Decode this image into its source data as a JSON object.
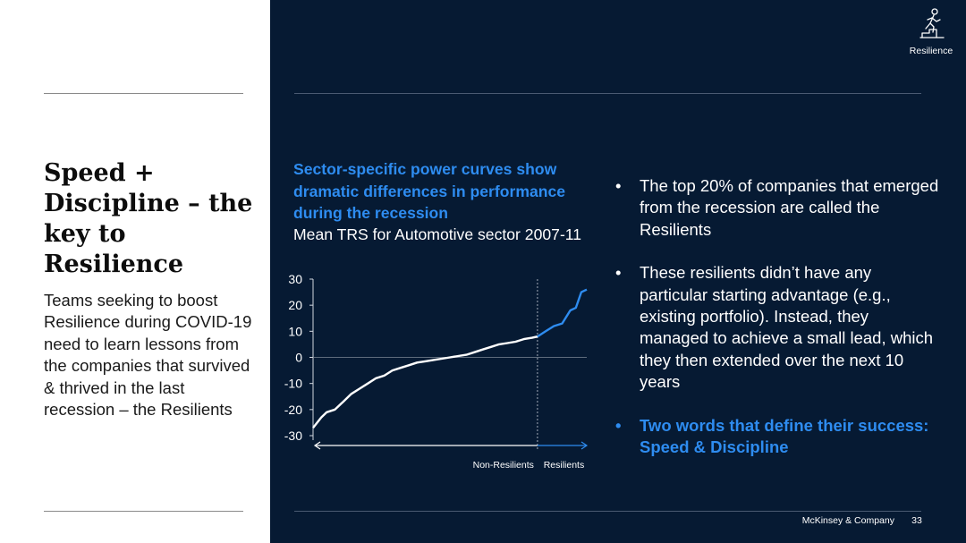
{
  "slide": {
    "title": "Speed + Discipline – the key to Resilience",
    "body": "Teams seeking to boost Resilience during COVID-19 need to learn lessons from the companies that survived & thrived in the last recession – the Resilients"
  },
  "header": {
    "tag_label": "Resilience",
    "tag_icon": "stair-climber-icon"
  },
  "chart": {
    "heading": "Sector-specific power curves show dramatic differences in performance during the recession",
    "subtitle": "Mean TRS for Automotive sector 2007-11"
  },
  "chart_data": {
    "type": "line",
    "title": "Mean TRS for Automotive sector 2007-11",
    "ylim": [
      -30,
      30
    ],
    "yticks": [
      "30",
      "20",
      "10",
      "0",
      "-10",
      "-20",
      "-30"
    ],
    "grid": false,
    "divider_rank": 82,
    "x": [
      0,
      3,
      5,
      8,
      11,
      14,
      17,
      20,
      23,
      26,
      29,
      32,
      35,
      38,
      41,
      44,
      47,
      50,
      53,
      56,
      59,
      62,
      65,
      68,
      71,
      74,
      77,
      80,
      82,
      85,
      88,
      91,
      94,
      96,
      98,
      100
    ],
    "series": [
      {
        "name": "Non-Resilients",
        "color": "#ffffff",
        "x": [
          0,
          3,
          5,
          8,
          11,
          14,
          17,
          20,
          23,
          26,
          29,
          32,
          35,
          38,
          41,
          44,
          47,
          50,
          53,
          56,
          59,
          62,
          65,
          68,
          71,
          74,
          77,
          80,
          82
        ],
        "values": [
          -27,
          -23,
          -21,
          -20,
          -17,
          -14,
          -12,
          -10,
          -8,
          -7,
          -5,
          -4,
          -3,
          -2,
          -1.5,
          -1,
          -0.5,
          0,
          0.5,
          1,
          2,
          3,
          4,
          5,
          5.5,
          6,
          7,
          7.5,
          8
        ]
      },
      {
        "name": "Resilients",
        "color": "#2e8cf0",
        "x": [
          82,
          85,
          88,
          91,
          94,
          96,
          98,
          100
        ],
        "values": [
          8,
          10,
          12,
          13,
          18,
          19,
          25,
          26
        ]
      }
    ],
    "xaxis_labels": [
      "Non-Resilients",
      "Resilients"
    ]
  },
  "bullets": [
    {
      "text": "The top 20% of companies that emerged from the recession are called the Resilients"
    },
    {
      "text": "These resilients didn’t have any particular starting advantage (e.g., existing portfolio). Instead, they managed to achieve a small lead, which they then extended over the next 10 years"
    },
    {
      "text": "Two words that define their success: Speed & Discipline"
    }
  ],
  "bullet_marker": "•",
  "footer": {
    "brand": "McKinsey & Company",
    "page": "33"
  },
  "colors": {
    "background_dark": "#061a33",
    "accent_blue": "#2e8cf0",
    "text_light": "#ffffff"
  }
}
